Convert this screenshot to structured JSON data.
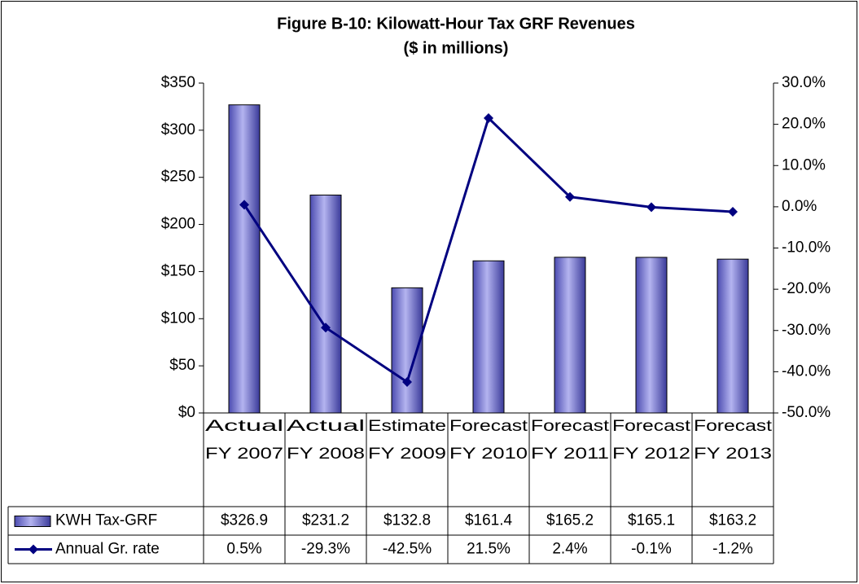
{
  "chart_data": {
    "type": "bar-line",
    "title": "Figure B-10: Kilowatt-Hour Tax GRF Revenues",
    "subtitle": "($ in millions)",
    "categories": [
      [
        "Actual",
        "FY 2007"
      ],
      [
        "Actual",
        "FY 2008"
      ],
      [
        "Estimate",
        "FY 2009"
      ],
      [
        "Forecast",
        "FY 2010"
      ],
      [
        "Forecast",
        "FY 2011"
      ],
      [
        "Forecast",
        "FY 2012"
      ],
      [
        "Forecast",
        "FY 2013"
      ]
    ],
    "series": [
      {
        "name": "KWH Tax-GRF",
        "type": "bar",
        "color": "#6666cc",
        "values": [
          326.9,
          231.2,
          132.8,
          161.4,
          165.2,
          165.1,
          163.2
        ],
        "value_labels": [
          "$326.9",
          "$231.2",
          "$132.8",
          "$161.4",
          "$165.2",
          "$165.1",
          "$163.2"
        ]
      },
      {
        "name": "Annual Gr. rate",
        "type": "line",
        "axis": "y2",
        "color": "#000080",
        "values": [
          0.5,
          -29.3,
          -42.5,
          21.5,
          2.4,
          -0.1,
          -1.2
        ],
        "value_labels": [
          "0.5%",
          "-29.3%",
          "-42.5%",
          "21.5%",
          "2.4%",
          "-0.1%",
          "-1.2%"
        ]
      }
    ],
    "ylim": [
      0,
      350
    ],
    "yticks": [
      {
        "value": 0,
        "label": "$0"
      },
      {
        "value": 50,
        "label": "$50"
      },
      {
        "value": 100,
        "label": "$100"
      },
      {
        "value": 150,
        "label": "$150"
      },
      {
        "value": 200,
        "label": "$200"
      },
      {
        "value": 250,
        "label": "$250"
      },
      {
        "value": 300,
        "label": "$300"
      },
      {
        "value": 350,
        "label": "$350"
      }
    ],
    "y2lim": [
      -50,
      30
    ],
    "y2ticks": [
      {
        "value": -50,
        "label": "-50.0%"
      },
      {
        "value": -40,
        "label": "-40.0%"
      },
      {
        "value": -30,
        "label": "-30.0%"
      },
      {
        "value": -20,
        "label": "-20.0%"
      },
      {
        "value": -10,
        "label": "-10.0%"
      },
      {
        "value": 0,
        "label": "0.0%"
      },
      {
        "value": 10,
        "label": "10.0%"
      },
      {
        "value": 20,
        "label": "20.0%"
      },
      {
        "value": 30,
        "label": "30.0%"
      }
    ],
    "data_table": true
  }
}
